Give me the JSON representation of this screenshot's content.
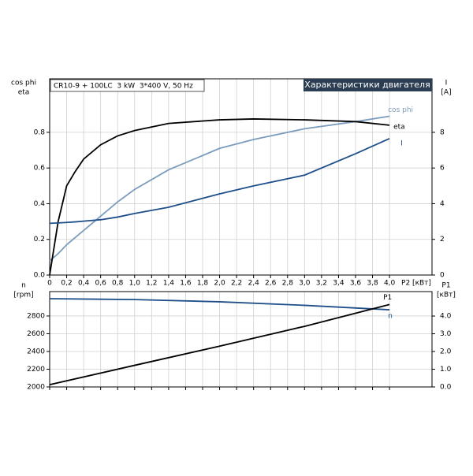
{
  "chart_data": [
    {
      "type": "line",
      "title": "CR10-9 + 100LC  3 kW  3*400 V, 50 Hz",
      "subtitle": "Характеристики двигателя",
      "xlabel": "P2 [кВт]",
      "ylabel": [
        "cos phi",
        "eta"
      ],
      "y2label": [
        "I",
        "[A]"
      ],
      "x": [
        0,
        0.1,
        0.2,
        0.3,
        0.4,
        0.6,
        0.8,
        1.0,
        1.4,
        2.0,
        2.4,
        3.0,
        3.6,
        4.0
      ],
      "series": [
        {
          "name": "cos phi",
          "color": "#7b9cbd",
          "values": [
            0.08,
            0.12,
            0.17,
            0.21,
            0.25,
            0.33,
            0.41,
            0.48,
            0.59,
            0.71,
            0.76,
            0.82,
            0.86,
            0.89
          ]
        },
        {
          "name": "eta",
          "color": "#000000",
          "values": [
            0,
            0.3,
            0.5,
            0.58,
            0.65,
            0.73,
            0.78,
            0.81,
            0.85,
            0.87,
            0.875,
            0.87,
            0.86,
            0.84
          ]
        },
        {
          "name": "I",
          "color": "#1f4f8a",
          "axis": "y2",
          "values": [
            2.9,
            2.92,
            2.95,
            2.98,
            3.02,
            3.1,
            3.25,
            3.45,
            3.8,
            4.55,
            5.0,
            5.6,
            6.8,
            7.65
          ]
        }
      ],
      "xlim": [
        0,
        4.5
      ],
      "xticks": [
        0,
        {
          "value": 0.2,
          "label": "0,2"
        },
        {
          "value": 0.4,
          "label": "0,4"
        },
        {
          "value": 0.6,
          "label": "0,6"
        },
        {
          "value": 0.8,
          "label": "0,8"
        },
        {
          "value": 1.0,
          "label": "1,0"
        },
        {
          "value": 1.2,
          "label": "1,2"
        },
        {
          "value": 1.4,
          "label": "1,4"
        },
        {
          "value": 1.6,
          "label": "1,6"
        },
        {
          "value": 1.8,
          "label": "1,8"
        },
        {
          "value": 2.0,
          "label": "2,0"
        },
        {
          "value": 2.2,
          "label": "2,2"
        },
        {
          "value": 2.4,
          "label": "2,4"
        },
        {
          "value": 2.6,
          "label": "2,6"
        },
        {
          "value": 2.8,
          "label": "2,8"
        },
        {
          "value": 3.0,
          "label": "3,0"
        },
        {
          "value": 3.2,
          "label": "3,2"
        },
        {
          "value": 3.4,
          "label": "3,4"
        },
        {
          "value": 3.6,
          "label": "3,6"
        },
        {
          "value": 3.8,
          "label": "3,8"
        },
        {
          "value": 4.0,
          "label": "4,0"
        }
      ],
      "ylim": [
        0,
        1.1
      ],
      "yticks": [
        {
          "value": 0,
          "label": "0.0"
        },
        0.2,
        0.4,
        0.6,
        0.8
      ],
      "y2lim": [
        0,
        11
      ],
      "y2ticks": [
        0,
        2,
        4,
        6,
        8
      ],
      "grid": true
    },
    {
      "type": "line",
      "ylabel": [
        "n",
        "[rpm]"
      ],
      "y2label": [
        "P1",
        "[кВт]"
      ],
      "x": [
        0,
        1,
        2,
        3,
        4
      ],
      "series": [
        {
          "name": "n",
          "color": "#1f4f8a",
          "values": [
            2995,
            2985,
            2960,
            2920,
            2870
          ]
        },
        {
          "name": "P1",
          "color": "#000000",
          "axis": "y2",
          "values": [
            0.13,
            1.22,
            2.3,
            3.42,
            4.65
          ]
        }
      ],
      "xlim": [
        0,
        4.5
      ],
      "ylim": [
        2000,
        3075
      ],
      "yticks": [
        2000,
        2200,
        2400,
        2600,
        2800
      ],
      "y2lim": [
        0,
        5.38
      ],
      "y2ticks": [
        {
          "value": 0,
          "label": "0.0"
        },
        {
          "value": 1,
          "label": "1.0"
        },
        {
          "value": 2,
          "label": "2.0"
        },
        {
          "value": 3,
          "label": "3.0"
        },
        {
          "value": 4,
          "label": "4.0"
        }
      ],
      "grid": true
    }
  ]
}
